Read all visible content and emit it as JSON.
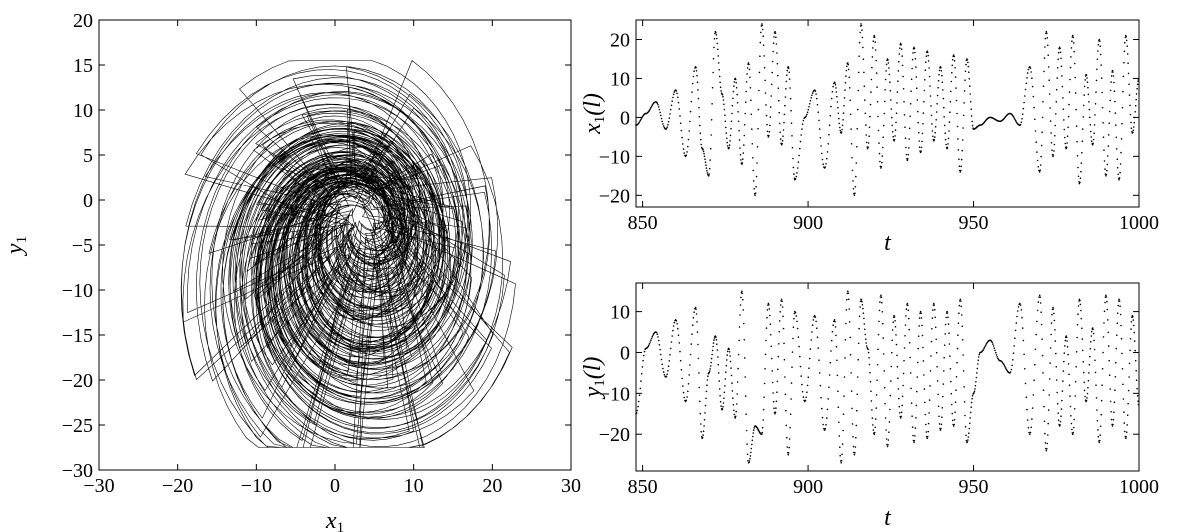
{
  "chart_data": [
    {
      "type": "line",
      "title": "",
      "xlabel": "x1",
      "ylabel": "y1",
      "xlim": [
        -30,
        30
      ],
      "ylim": [
        -30,
        20
      ],
      "xticks": [
        -30,
        -20,
        -10,
        0,
        10,
        20,
        30
      ],
      "yticks": [
        -30,
        -25,
        -20,
        -15,
        -10,
        -5,
        0,
        5,
        10,
        15,
        20
      ],
      "xtick_labels": [
        "−30",
        "−20",
        "−10",
        "0",
        "10",
        "20",
        "30"
      ],
      "ytick_labels": [
        "−30",
        "−25",
        "−20",
        "−15",
        "−10",
        "−5",
        "0",
        "5",
        "10",
        "15",
        "20"
      ],
      "description_shape": "phase portrait",
      "series": [
        {
          "values_envelope": {
            "x_range": [
              -22,
              24.5
            ],
            "y_range": [
              -27.5,
              15.5
            ],
            "center": [
              0,
              0
            ]
          }
        }
      ]
    },
    {
      "type": "line",
      "title": "",
      "xlabel": "t",
      "ylabel": "x1(l)",
      "xlim": [
        848,
        1000
      ],
      "ylim": [
        -23,
        25
      ],
      "xticks": [
        850,
        900,
        950,
        1000
      ],
      "yticks": [
        -20,
        -10,
        0,
        10,
        20
      ],
      "xtick_labels": [
        "850",
        "900",
        "950",
        "1000"
      ],
      "ytick_labels": [
        "−20",
        "−10",
        "0",
        "10",
        "20"
      ],
      "series": [
        {
          "x": [
            848,
            851,
            854,
            857,
            860,
            863,
            866,
            868,
            870,
            872,
            874,
            876,
            878,
            880,
            882,
            884,
            886,
            888,
            890,
            892,
            894,
            896,
            899,
            902,
            905,
            908,
            910,
            912,
            914,
            916,
            918,
            920,
            922,
            924,
            926,
            928,
            930,
            932,
            934,
            936,
            938,
            940,
            942,
            944,
            946,
            948,
            950,
            952,
            955,
            958,
            961,
            964,
            967,
            970,
            972,
            974,
            976,
            978,
            980,
            982,
            984,
            986,
            988,
            990,
            992,
            994,
            996,
            998,
            1000
          ],
          "values": [
            -2,
            1,
            4,
            -3,
            7,
            -10,
            13,
            -8,
            -15,
            22,
            6,
            -8,
            10,
            -12,
            14,
            -20,
            24,
            -5,
            22,
            -7,
            13,
            -16,
            0,
            7,
            -13,
            9,
            -4,
            14,
            -20,
            24,
            -8,
            21,
            -13,
            15,
            -6,
            19,
            -11,
            18,
            -9,
            17,
            -6,
            13,
            -8,
            16,
            -14,
            15,
            -3,
            -2,
            0,
            -1,
            1,
            -2,
            13,
            -14,
            22,
            -10,
            18,
            -8,
            21,
            -17,
            11,
            -7,
            20,
            -15,
            12,
            -16,
            21,
            -4,
            10
          ]
        }
      ]
    },
    {
      "type": "line",
      "title": "",
      "xlabel": "t",
      "ylabel": "y1(l)",
      "xlim": [
        848,
        1000
      ],
      "ylim": [
        -29,
        17
      ],
      "xticks": [
        850,
        900,
        950,
        1000
      ],
      "yticks": [
        -20,
        -10,
        0,
        10
      ],
      "xtick_labels": [
        "850",
        "900",
        "950",
        "1000"
      ],
      "ytick_labels": [
        "−20",
        "−10",
        "0",
        "10"
      ],
      "series": [
        {
          "x": [
            848,
            851,
            854,
            857,
            860,
            863,
            866,
            868,
            870,
            872,
            874,
            876,
            878,
            880,
            882,
            884,
            886,
            888,
            890,
            892,
            894,
            896,
            899,
            902,
            905,
            908,
            910,
            912,
            914,
            916,
            918,
            920,
            922,
            924,
            926,
            928,
            930,
            932,
            934,
            936,
            938,
            940,
            942,
            944,
            946,
            948,
            950,
            952,
            955,
            958,
            961,
            964,
            967,
            970,
            972,
            974,
            976,
            978,
            980,
            982,
            984,
            986,
            988,
            990,
            992,
            994,
            996,
            998,
            1000
          ],
          "values": [
            -15,
            1,
            5,
            -6,
            8,
            -12,
            11,
            -21,
            -5,
            4,
            -14,
            1,
            -16,
            15,
            -27,
            -18,
            -20,
            12,
            -15,
            13,
            -25,
            10,
            -12,
            9,
            -19,
            8,
            -27,
            15,
            -25,
            13,
            1,
            -20,
            14,
            -23,
            9,
            -16,
            12,
            -22,
            10,
            -21,
            12,
            -19,
            10,
            -18,
            13,
            -22,
            -10,
            0,
            3,
            -2,
            -5,
            12,
            -20,
            14,
            -24,
            11,
            -18,
            4,
            -20,
            13,
            -12,
            6,
            -22,
            14,
            -18,
            13,
            -21,
            9,
            -13
          ]
        }
      ]
    }
  ]
}
